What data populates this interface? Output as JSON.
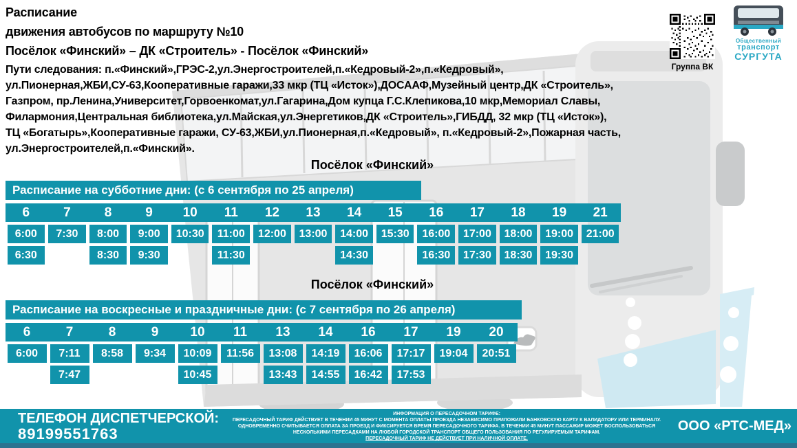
{
  "header": {
    "title_line1": "Расписание",
    "title_line2": "движения автобусов по маршруту №10",
    "title_line3": "Посёлок «Финский» – ДК «Строитель» - Посёлок «Финский»",
    "route_lines": [
      "Пути следования: п.«Финский»,ГРЭС-2,ул.Энергостроителей,п.«Кедровый-2»,п.«Кедровый»,",
      "ул.Пионерная,ЖБИ,СУ-63,Кооперативные гаражи,33 мкр (ТЦ «Исток»),ДОСААФ,Музейный центр,ДК «Строитель»,",
      "Газпром, пр.Ленина,Университет,Горвоенкомат,ул.Гагарина,Дом купца Г.С.Клепикова,10 мкр,Мемориал Славы,",
      "Филармония,Центральная библиотека,ул.Майская,ул.Энергетиков,ДК «Строитель»,ГИБДД, 32 мкр (ТЦ «Исток»),",
      "ТЦ «Богатырь»,Кооперативные гаражи, СУ-63,ЖБИ,ул.Пионерная,п.«Кедровый», п.«Кедровый-2»,Пожарная часть,",
      "ул.Энергостроителей,п.«Финский»."
    ]
  },
  "vk": {
    "caption": "Группа ВК"
  },
  "logo": {
    "line1": "Общественный",
    "line2": "транспорт",
    "line3": "СУРГУТА"
  },
  "sections": [
    {
      "heading": "Посёлок «Финский»",
      "banner": "Расписание на субботние дни: (с 6 сентября по 25 апреля)",
      "hours": [
        "6",
        "7",
        "8",
        "9",
        "10",
        "11",
        "12",
        "13",
        "14",
        "15",
        "16",
        "17",
        "18",
        "19",
        "21"
      ],
      "row1": [
        "6:00",
        "7:30",
        "8:00",
        "9:00",
        "10:30",
        "11:00",
        "12:00",
        "13:00",
        "14:00",
        "15:30",
        "16:00",
        "17:00",
        "18:00",
        "19:00",
        "21:00"
      ],
      "row2": [
        "6:30",
        "",
        "8:30",
        "9:30",
        "",
        "11:30",
        "",
        "",
        "14:30",
        "",
        "16:30",
        "17:30",
        "18:30",
        "19:30",
        ""
      ]
    },
    {
      "heading": "Посёлок «Финский»",
      "banner": "Расписание на воскресные и праздничные дни: (с 7 сентября по 26 апреля)",
      "hours": [
        "6",
        "7",
        "8",
        "9",
        "10",
        "11",
        "13",
        "14",
        "16",
        "17",
        "19",
        "20"
      ],
      "row1": [
        "6:00",
        "7:11",
        "8:58",
        "9:34",
        "10:09",
        "11:56",
        "13:08",
        "14:19",
        "16:06",
        "17:17",
        "19:04",
        "20:51"
      ],
      "row2": [
        "",
        "7:47",
        "",
        "",
        "10:45",
        "",
        "13:43",
        "14:55",
        "16:42",
        "17:53",
        "",
        ""
      ]
    }
  ],
  "footer": {
    "phone_label": "ТЕЛЕФОН ДИСПЕТЧЕРСКОЙ:",
    "phone_number": "89199551763",
    "info_title": "ИНФОРМАЦИЯ О ПЕРЕСАДОЧНОМ ТАРИФЕ:",
    "info_lines": [
      {
        "text": "ПЕРЕСАДОЧНЫЙ ТАРИФ ДЕЙСТВУЕТ В ТЕЧЕНИИ 45 МИНУТ С МОМЕНТА ОПЛАТЫ ПРОЕЗДА НЕЗАВИСИМО ПРИЛОЖИЛИ БАНКОВСКУЮ КАРТУ К ВАЛИДАТОРУ ИЛИ ТЕРМИНАЛУ.",
        "underline": false
      },
      {
        "text": "ОДНОВРЕМЕННО СЧИТЫВАЕТСЯ ОПЛАТА ЗА ПРОЕЗД И ФИКСИРУЕТСЯ ВРЕМЯ ПЕРЕСАДОЧНОГО ТАРИФА. В ТЕЧЕНИИ 45 МИНУТ ПАССАЖИР МОЖЕТ ВОСПОЛЬЗОВАТЬСЯ",
        "underline": false
      },
      {
        "text": "НЕСКОЛЬКИМИ ПЕРЕСАДКАМИ НА ЛЮБОЙ ГОРОДСКОЙ ТРАНСПОРТ ОБЩЕГО ПОЛЬЗОВАНИЯ ПО РЕГУЛИРУЕМЫМ ТАРИФАМ.",
        "underline": false
      },
      {
        "text": "ПЕРЕСАДОЧНЫЙ ТАРИФ НЕ ДЕЙСТВУЕТ ПРИ НАЛИЧНОЙ ОПЛАТЕ.",
        "underline": true
      }
    ],
    "company": "ООО «РТС-МЕД»"
  },
  "colors": {
    "teal": "#1193ab",
    "logo_teal": "#2aa8c4",
    "bottom_strip": "#2b7390"
  }
}
